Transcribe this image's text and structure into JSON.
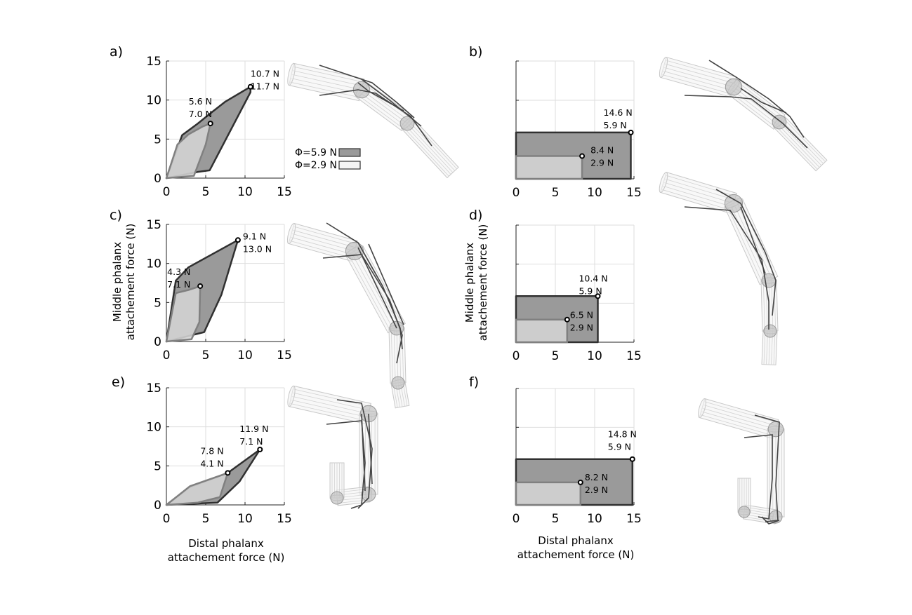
{
  "figure": {
    "legend": {
      "phi_high_label": "Φ=5.9 N",
      "phi_low_label": "Φ=2.9 N"
    },
    "y_axis_title_line1": "Middle phalanx",
    "y_axis_title_line2": "attachement force (N)",
    "x_axis_title_line1": "Distal phalanx",
    "x_axis_title_line2": "attachement force (N)"
  },
  "chart_data": [
    {
      "panel": "a)",
      "type": "area",
      "xlim": [
        0,
        15
      ],
      "ylim": [
        0,
        15
      ],
      "xticks": [
        "0",
        "5",
        "10",
        "15"
      ],
      "yticks": [
        "0",
        "5",
        "10",
        "15"
      ],
      "series": [
        {
          "polygon": [
            [
              0,
              0
            ],
            [
              2.0,
              5.5
            ],
            [
              4.0,
              7.0
            ],
            [
              5.6,
              8.3
            ],
            [
              7.5,
              9.8
            ],
            [
              10.7,
              11.7
            ],
            [
              10.7,
              11.0
            ],
            [
              5.5,
              1.0
            ],
            [
              4.0,
              0.8
            ],
            [
              0,
              0
            ]
          ]
        },
        {
          "polygon": [
            [
              0,
              0
            ],
            [
              1.4,
              4.3
            ],
            [
              2.8,
              5.6
            ],
            [
              4.6,
              6.6
            ],
            [
              5.6,
              7.0
            ],
            [
              5.0,
              4.3
            ],
            [
              3.5,
              0.3
            ],
            [
              0,
              0
            ]
          ]
        }
      ],
      "points": [
        {
          "x": 10.7,
          "y": 11.7,
          "label1": "10.7 N",
          "label2": "11.7 N"
        },
        {
          "x": 5.6,
          "y": 7.0,
          "label1": "5.6 N",
          "label2": "7.0 N"
        }
      ]
    },
    {
      "panel": "b)",
      "type": "area",
      "xlim": [
        0,
        15
      ],
      "ylim": [
        0,
        15
      ],
      "xticks": [
        "0",
        "5",
        "10",
        "15"
      ],
      "yticks": [],
      "series": [
        {
          "polygon": [
            [
              0,
              0
            ],
            [
              0,
              5.9
            ],
            [
              14.6,
              5.9
            ],
            [
              14.6,
              0
            ],
            [
              0,
              0
            ]
          ]
        },
        {
          "polygon": [
            [
              0,
              0
            ],
            [
              0,
              2.9
            ],
            [
              8.4,
              2.9
            ],
            [
              8.4,
              0
            ],
            [
              0,
              0
            ]
          ]
        }
      ],
      "points": [
        {
          "x": 14.6,
          "y": 5.9,
          "label1": "14.6 N",
          "label2": "5.9 N"
        },
        {
          "x": 8.4,
          "y": 2.9,
          "label1": "8.4 N",
          "label2": "2.9 N"
        }
      ]
    },
    {
      "panel": "c)",
      "type": "area",
      "xlim": [
        0,
        15
      ],
      "ylim": [
        0,
        15
      ],
      "xticks": [
        "0",
        "5",
        "10",
        "15"
      ],
      "yticks": [
        "0",
        "5",
        "10",
        "15"
      ],
      "series": [
        {
          "polygon": [
            [
              0,
              0
            ],
            [
              1.2,
              7.8
            ],
            [
              2.8,
              9.5
            ],
            [
              9.1,
              13.0
            ],
            [
              7.0,
              6.0
            ],
            [
              4.8,
              1.2
            ],
            [
              0,
              0
            ]
          ]
        },
        {
          "polygon": [
            [
              0,
              0
            ],
            [
              1.2,
              6.2
            ],
            [
              2.8,
              6.6
            ],
            [
              4.3,
              7.1
            ],
            [
              4.2,
              2.5
            ],
            [
              3.2,
              0.3
            ],
            [
              0,
              0
            ]
          ]
        }
      ],
      "points": [
        {
          "x": 9.1,
          "y": 13.0,
          "label1": "9.1 N",
          "label2": "13.0 N"
        },
        {
          "x": 4.3,
          "y": 7.1,
          "label1": "4.3 N",
          "label2": "7.1 N"
        }
      ]
    },
    {
      "panel": "d)",
      "type": "area",
      "xlim": [
        0,
        15
      ],
      "ylim": [
        0,
        15
      ],
      "xticks": [
        "0",
        "5",
        "10",
        "15"
      ],
      "yticks": [],
      "series": [
        {
          "polygon": [
            [
              0,
              0
            ],
            [
              0,
              5.9
            ],
            [
              10.4,
              5.9
            ],
            [
              10.4,
              0
            ],
            [
              0,
              0
            ]
          ]
        },
        {
          "polygon": [
            [
              0,
              0
            ],
            [
              0,
              2.9
            ],
            [
              6.5,
              2.9
            ],
            [
              6.5,
              0
            ],
            [
              0,
              0
            ]
          ]
        }
      ],
      "points": [
        {
          "x": 10.4,
          "y": 5.9,
          "label1": "10.4 N",
          "label2": "5.9 N"
        },
        {
          "x": 6.5,
          "y": 2.9,
          "label1": "6.5 N",
          "label2": "2.9 N"
        }
      ]
    },
    {
      "panel": "e)",
      "type": "area",
      "xlim": [
        0,
        15
      ],
      "ylim": [
        0,
        15
      ],
      "xticks": [
        "0",
        "5",
        "10",
        "15"
      ],
      "yticks": [
        "0",
        "5",
        "10",
        "15"
      ],
      "series": [
        {
          "polygon": [
            [
              0,
              0
            ],
            [
              3.0,
              2.3
            ],
            [
              7.8,
              4.1
            ],
            [
              11.9,
              7.1
            ],
            [
              9.3,
              3.0
            ],
            [
              6.5,
              0.3
            ],
            [
              0,
              0
            ]
          ]
        },
        {
          "polygon": [
            [
              0,
              0
            ],
            [
              3.0,
              2.4
            ],
            [
              7.8,
              4.1
            ],
            [
              6.8,
              1.0
            ],
            [
              4.0,
              0.3
            ],
            [
              0,
              0
            ]
          ]
        }
      ],
      "points": [
        {
          "x": 11.9,
          "y": 7.1,
          "label1": "11.9 N",
          "label2": "7.1 N"
        },
        {
          "x": 7.8,
          "y": 4.1,
          "label1": "7.8 N",
          "label2": "4.1 N"
        }
      ]
    },
    {
      "panel": "f)",
      "type": "area",
      "xlim": [
        0,
        15
      ],
      "ylim": [
        0,
        15
      ],
      "xticks": [
        "0",
        "5",
        "10",
        "15"
      ],
      "yticks": [],
      "series": [
        {
          "polygon": [
            [
              0,
              0
            ],
            [
              0,
              5.9
            ],
            [
              14.8,
              5.9
            ],
            [
              14.8,
              0
            ],
            [
              0,
              0
            ]
          ]
        },
        {
          "polygon": [
            [
              0,
              0
            ],
            [
              0,
              2.9
            ],
            [
              8.2,
              2.9
            ],
            [
              8.2,
              0
            ],
            [
              0,
              0
            ]
          ]
        }
      ],
      "points": [
        {
          "x": 14.8,
          "y": 5.9,
          "label1": "14.8 N",
          "label2": "5.9 N"
        },
        {
          "x": 8.2,
          "y": 2.9,
          "label1": "8.2 N",
          "label2": "2.9 N"
        }
      ]
    }
  ]
}
